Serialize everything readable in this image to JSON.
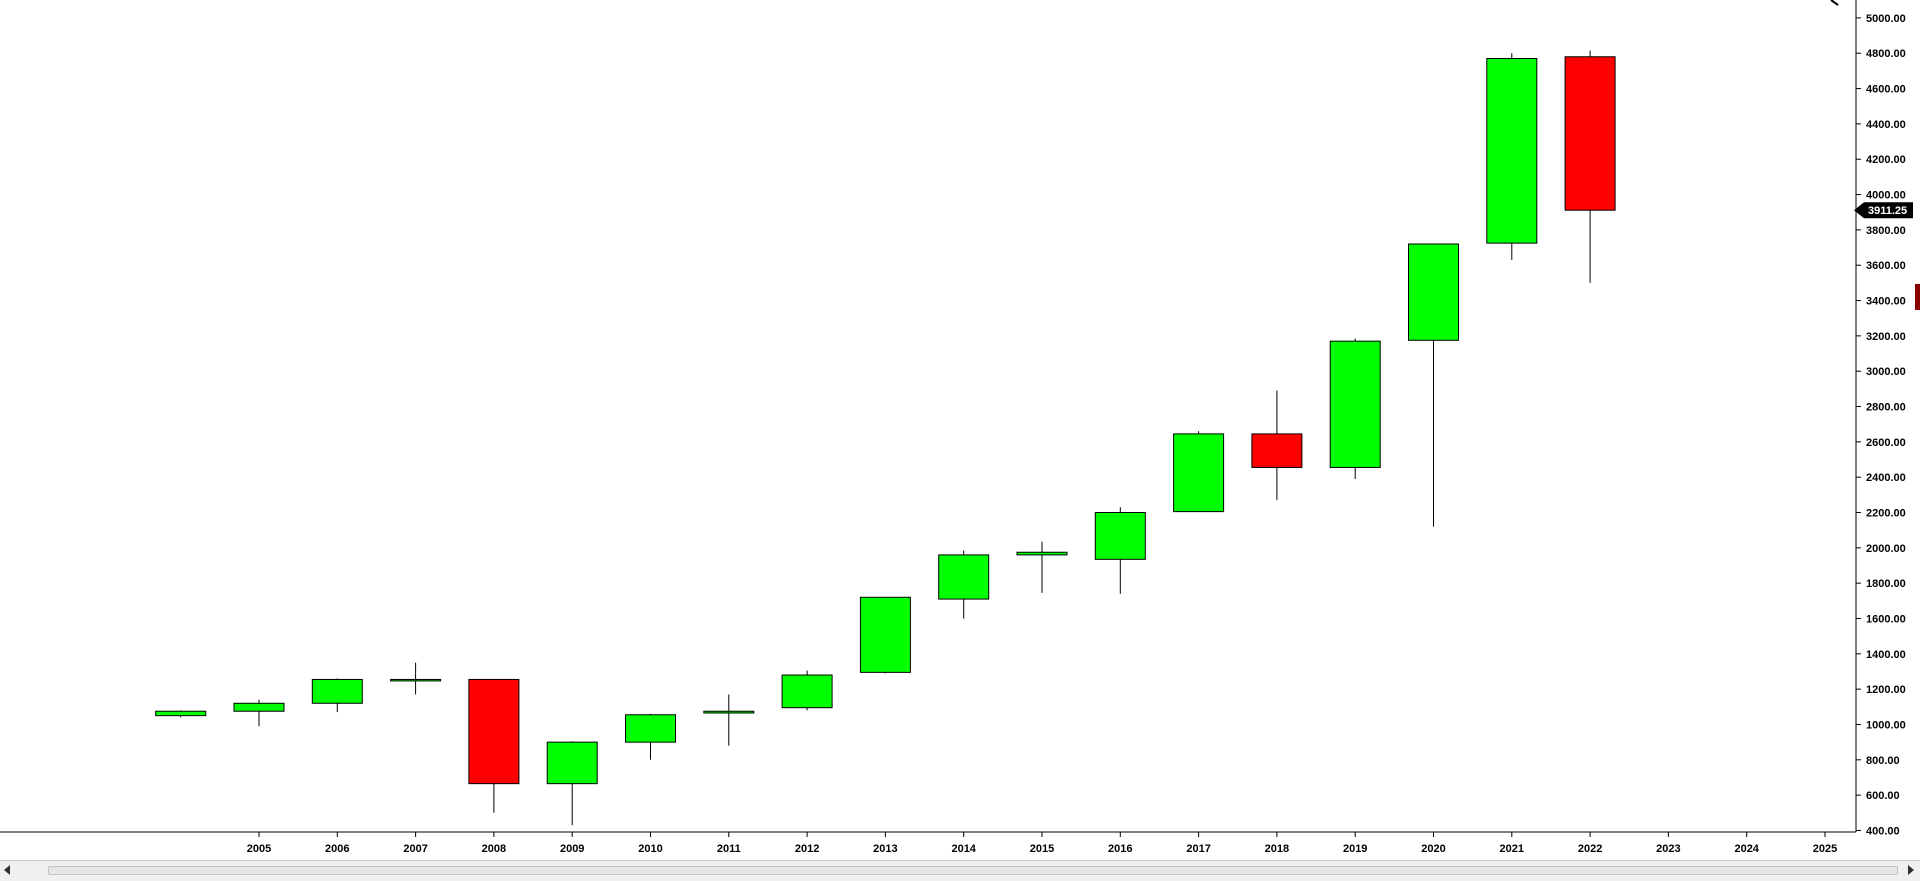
{
  "chart_data": {
    "type": "candlestick",
    "title": "",
    "xlabel": "",
    "ylabel": "",
    "x_ticks": [
      "2005",
      "2006",
      "2007",
      "2008",
      "2009",
      "2010",
      "2011",
      "2012",
      "2013",
      "2014",
      "2015",
      "2016",
      "2017",
      "2018",
      "2019",
      "2020",
      "2021",
      "2022",
      "2023",
      "2024",
      "2025"
    ],
    "y_ticks": [
      "400.00",
      "600.00",
      "800.00",
      "1000.00",
      "1200.00",
      "1400.00",
      "1600.00",
      "1800.00",
      "2000.00",
      "2200.00",
      "2400.00",
      "2600.00",
      "2800.00",
      "3000.00",
      "3200.00",
      "3400.00",
      "3600.00",
      "3800.00",
      "4000.00",
      "4200.00",
      "4400.00",
      "4600.00",
      "4800.00",
      "5000.00"
    ],
    "ylim": [
      380,
      5090
    ],
    "grid": false,
    "current_price": "3911.25",
    "up_color": "#00ff00",
    "down_color": "#ff0000",
    "price_tag_color": "#000000",
    "candles": [
      {
        "year": 2004,
        "open": 1050,
        "high": 1080,
        "low": 1040,
        "close": 1075
      },
      {
        "year": 2005,
        "open": 1075,
        "high": 1140,
        "low": 990,
        "close": 1120
      },
      {
        "year": 2006,
        "open": 1120,
        "high": 1260,
        "low": 1070,
        "close": 1255
      },
      {
        "year": 2007,
        "open": 1250,
        "high": 1350,
        "low": 1170,
        "close": 1255
      },
      {
        "year": 2008,
        "open": 1255,
        "high": 1255,
        "low": 500,
        "close": 665
      },
      {
        "year": 2009,
        "open": 665,
        "high": 905,
        "low": 430,
        "close": 900
      },
      {
        "year": 2010,
        "open": 900,
        "high": 1060,
        "low": 800,
        "close": 1055
      },
      {
        "year": 2011,
        "open": 1065,
        "high": 1170,
        "low": 880,
        "close": 1075
      },
      {
        "year": 2012,
        "open": 1095,
        "high": 1305,
        "low": 1080,
        "close": 1280
      },
      {
        "year": 2013,
        "open": 1295,
        "high": 1720,
        "low": 1290,
        "close": 1720
      },
      {
        "year": 2014,
        "open": 1710,
        "high": 1985,
        "low": 1600,
        "close": 1960
      },
      {
        "year": 2015,
        "open": 1960,
        "high": 2035,
        "low": 1745,
        "close": 1975
      },
      {
        "year": 2016,
        "open": 1935,
        "high": 2230,
        "low": 1740,
        "close": 2200
      },
      {
        "year": 2017,
        "open": 2205,
        "high": 2660,
        "low": 2205,
        "close": 2645
      },
      {
        "year": 2018,
        "open": 2645,
        "high": 2890,
        "low": 2270,
        "close": 2455
      },
      {
        "year": 2019,
        "open": 2455,
        "high": 3185,
        "low": 2390,
        "close": 3170
      },
      {
        "year": 2020,
        "open": 3175,
        "high": 3720,
        "low": 2120,
        "close": 3720
      },
      {
        "year": 2021,
        "open": 3725,
        "high": 4800,
        "low": 3630,
        "close": 4770
      },
      {
        "year": 2022,
        "open": 4780,
        "high": 4815,
        "low": 3500,
        "close": 3911.25
      }
    ]
  },
  "icons": {
    "zoom": "magnifier-icon",
    "scroll_left": "arrow-left-icon",
    "scroll_right": "arrow-right-icon"
  }
}
